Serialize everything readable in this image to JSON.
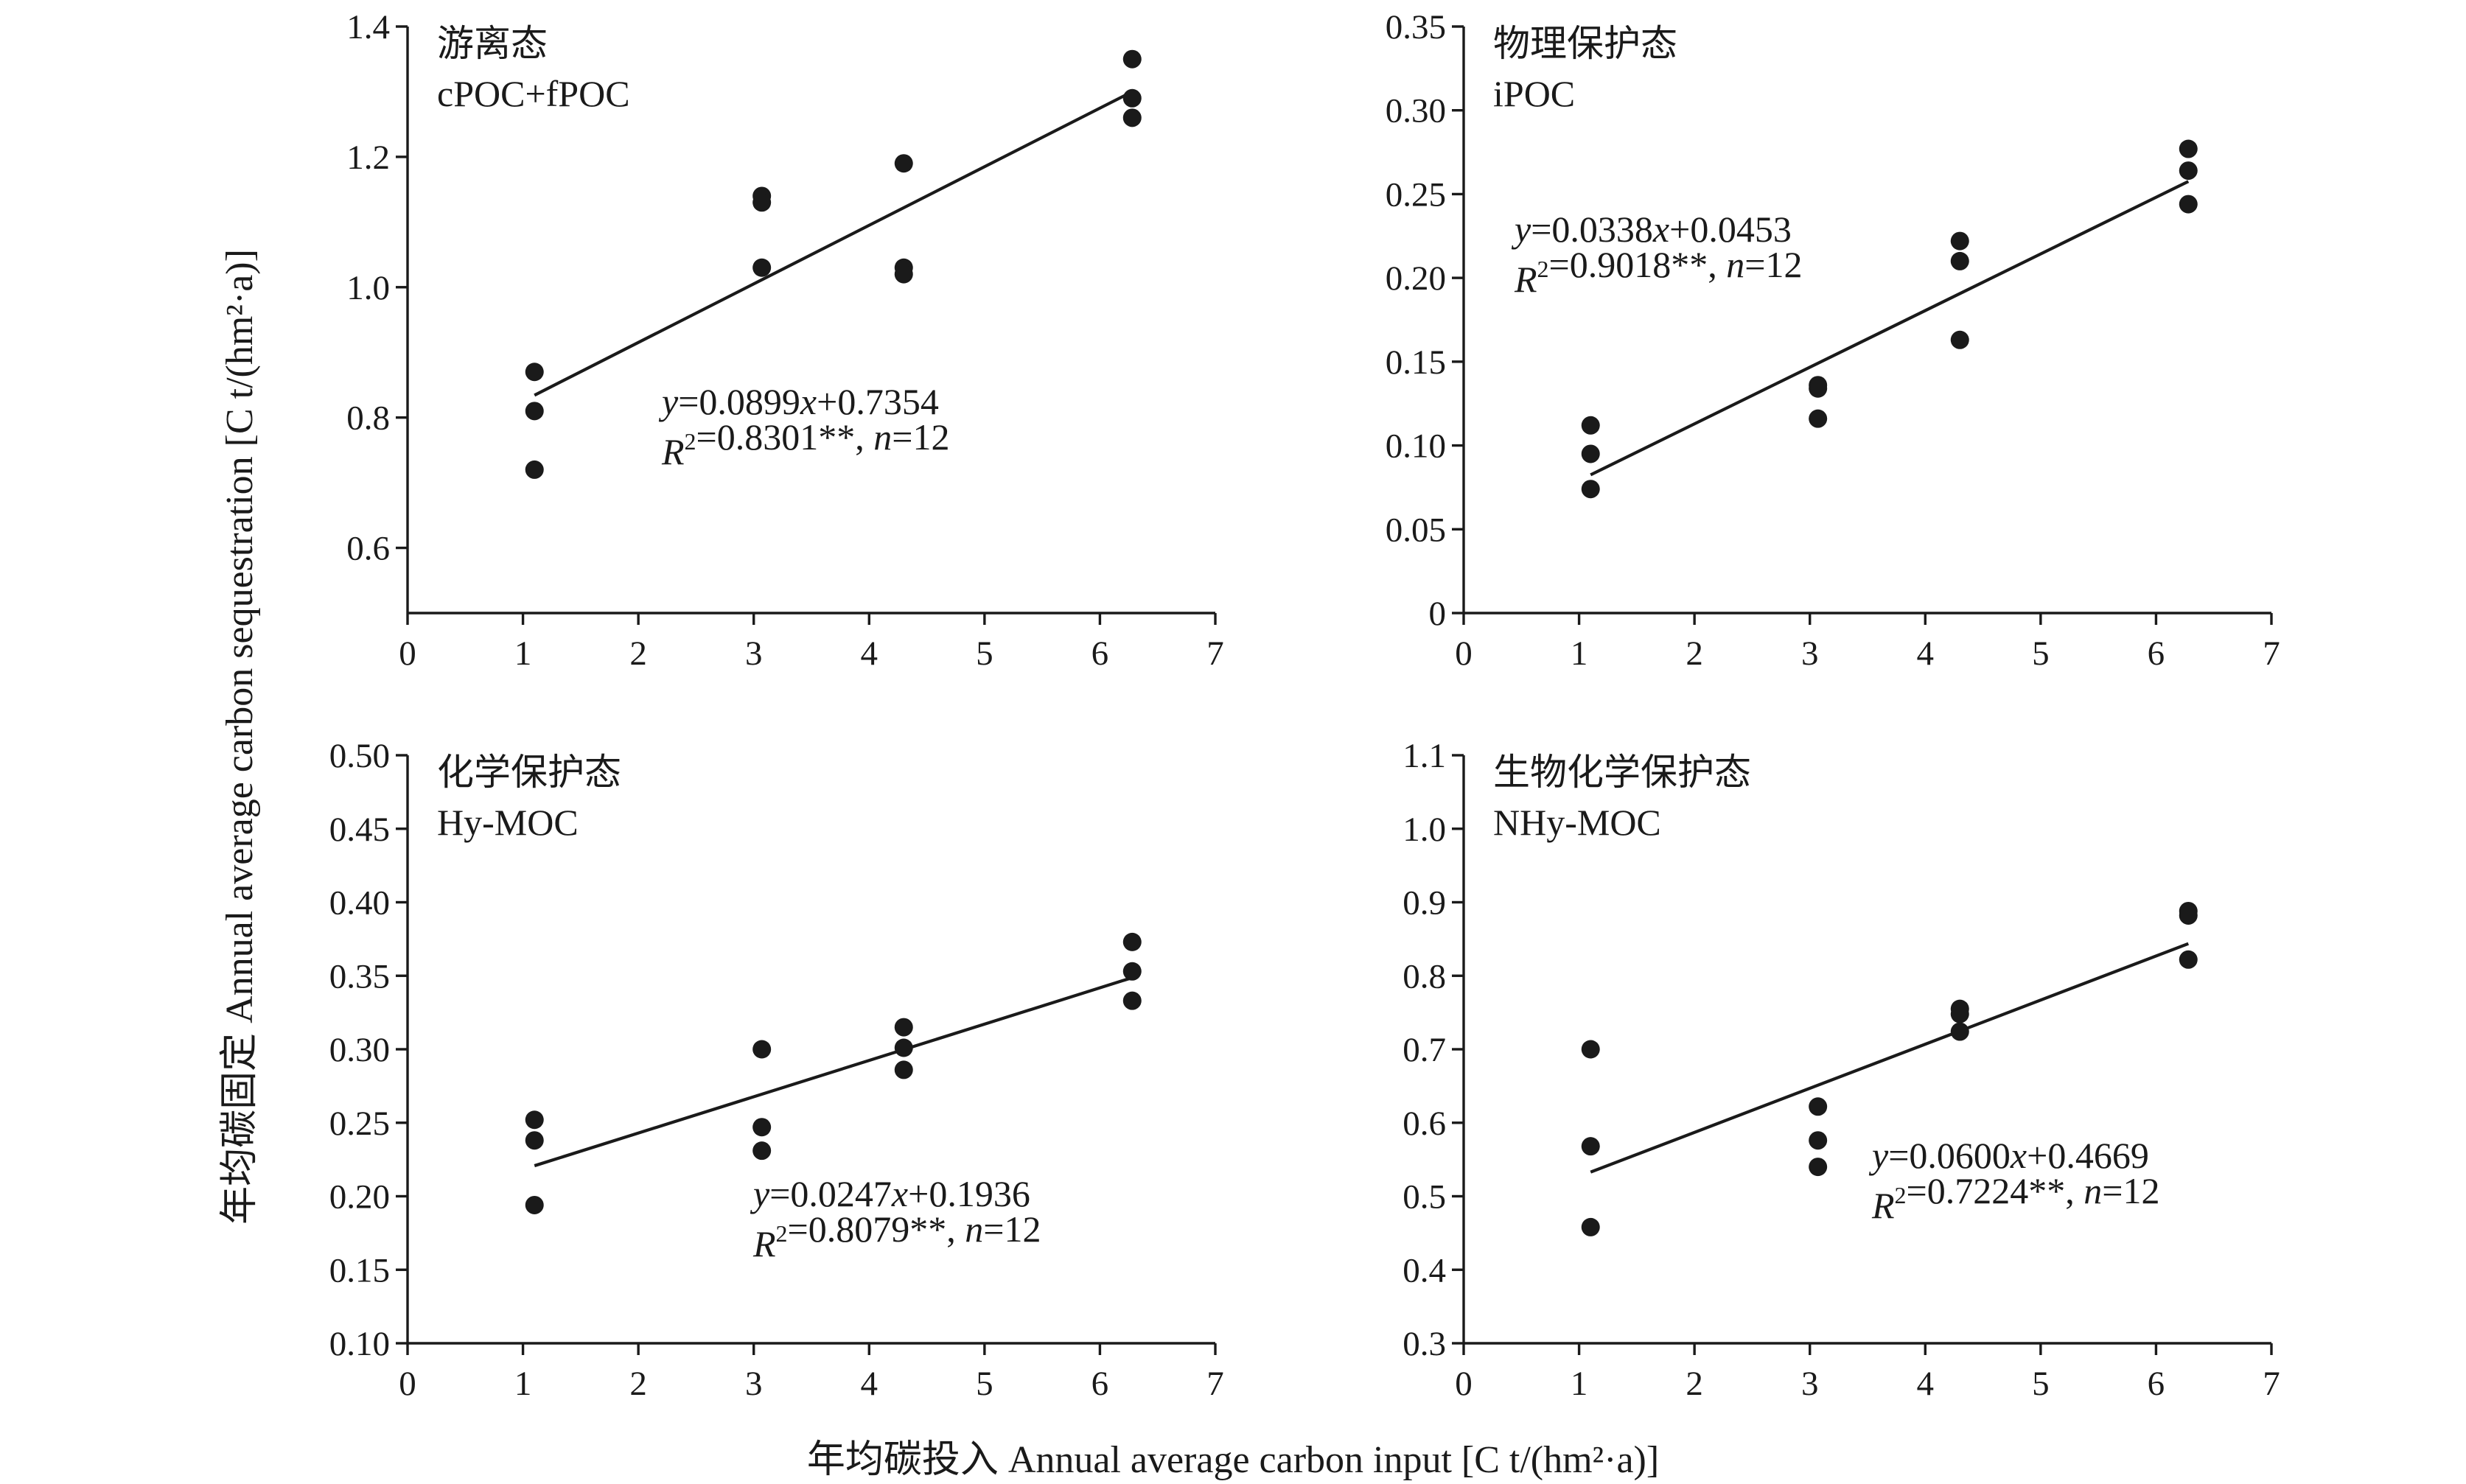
{
  "y_axis_label": "年均碳固定 Annual average carbon sequestration [C t/(hm²·a)]",
  "x_axis_label": "年均碳投入 Annual average carbon input [C t/(hm²·a)]",
  "chart_data": [
    {
      "type": "scatter",
      "title": "游离态",
      "subtitle": "cPOC+fPOC",
      "xlim": [
        0,
        7
      ],
      "ylim": [
        0.5,
        1.4
      ],
      "xticks": [
        "0",
        "1",
        "2",
        "3",
        "4",
        "5",
        "6",
        "7"
      ],
      "yticks": [
        "0.6",
        "0.8",
        "1.0",
        "1.2",
        "1.4"
      ],
      "points": [
        [
          1.1,
          0.87
        ],
        [
          1.1,
          0.81
        ],
        [
          1.1,
          0.72
        ],
        [
          3.07,
          1.14
        ],
        [
          3.07,
          1.13
        ],
        [
          3.07,
          1.03
        ],
        [
          4.3,
          1.19
        ],
        [
          4.3,
          1.03
        ],
        [
          4.3,
          1.02
        ],
        [
          6.28,
          1.35
        ],
        [
          6.28,
          1.29
        ],
        [
          6.28,
          1.26
        ]
      ],
      "fit": {
        "slope": 0.0899,
        "intercept": 0.7354,
        "x_range": [
          1.1,
          6.28
        ]
      },
      "equation": "y=0.0899x+0.7354",
      "stats": "R²=0.8301**, n=12"
    },
    {
      "type": "scatter",
      "title": "物理保护态",
      "subtitle": "iPOC",
      "xlim": [
        0,
        7
      ],
      "ylim": [
        0,
        0.35
      ],
      "xticks": [
        "0",
        "1",
        "2",
        "3",
        "4",
        "5",
        "6",
        "7"
      ],
      "yticks": [
        "0",
        "0.05",
        "0.10",
        "0.15",
        "0.20",
        "0.25",
        "0.30",
        "0.35"
      ],
      "points": [
        [
          1.1,
          0.112
        ],
        [
          1.1,
          0.095
        ],
        [
          1.1,
          0.074
        ],
        [
          3.07,
          0.136
        ],
        [
          3.07,
          0.134
        ],
        [
          3.07,
          0.116
        ],
        [
          4.3,
          0.222
        ],
        [
          4.3,
          0.21
        ],
        [
          4.3,
          0.163
        ],
        [
          6.28,
          0.277
        ],
        [
          6.28,
          0.264
        ],
        [
          6.28,
          0.244
        ]
      ],
      "fit": {
        "slope": 0.0338,
        "intercept": 0.0453,
        "x_range": [
          1.1,
          6.28
        ]
      },
      "equation": "y=0.0338x+0.0453",
      "stats": "R²=0.9018**, n=12"
    },
    {
      "type": "scatter",
      "title": "化学保护态",
      "subtitle": "Hy-MOC",
      "xlim": [
        0,
        7
      ],
      "ylim": [
        0.1,
        0.5
      ],
      "xticks": [
        "0",
        "1",
        "2",
        "3",
        "4",
        "5",
        "6",
        "7"
      ],
      "yticks": [
        "0.10",
        "0.15",
        "0.20",
        "0.25",
        "0.30",
        "0.35",
        "0.40",
        "0.45",
        "0.50"
      ],
      "points": [
        [
          1.1,
          0.252
        ],
        [
          1.1,
          0.238
        ],
        [
          1.1,
          0.194
        ],
        [
          3.07,
          0.3
        ],
        [
          3.07,
          0.247
        ],
        [
          3.07,
          0.231
        ],
        [
          4.3,
          0.315
        ],
        [
          4.3,
          0.301
        ],
        [
          4.3,
          0.286
        ],
        [
          6.28,
          0.373
        ],
        [
          6.28,
          0.353
        ],
        [
          6.28,
          0.333
        ]
      ],
      "fit": {
        "slope": 0.0247,
        "intercept": 0.1936,
        "x_range": [
          1.1,
          6.28
        ]
      },
      "equation": "y=0.0247x+0.1936",
      "stats": "R²=0.8079**, n=12"
    },
    {
      "type": "scatter",
      "title": "生物化学保护态",
      "subtitle": "NHy-MOC",
      "xlim": [
        0,
        7
      ],
      "ylim": [
        0.3,
        1.1
      ],
      "xticks": [
        "0",
        "1",
        "2",
        "3",
        "4",
        "5",
        "6",
        "7"
      ],
      "yticks": [
        "0.3",
        "0.4",
        "0.5",
        "0.6",
        "0.7",
        "0.8",
        "0.9",
        "1.0",
        "1.1"
      ],
      "points": [
        [
          1.1,
          0.7
        ],
        [
          1.1,
          0.568
        ],
        [
          1.1,
          0.458
        ],
        [
          3.07,
          0.622
        ],
        [
          3.07,
          0.576
        ],
        [
          3.07,
          0.54
        ],
        [
          4.3,
          0.755
        ],
        [
          4.3,
          0.748
        ],
        [
          4.3,
          0.724
        ],
        [
          6.28,
          0.888
        ],
        [
          6.28,
          0.882
        ],
        [
          6.28,
          0.822
        ]
      ],
      "fit": {
        "slope": 0.06,
        "intercept": 0.4669,
        "x_range": [
          1.1,
          6.28
        ]
      },
      "equation": "y=0.0600x+0.4669",
      "stats": "R²=0.7224**, n=12"
    }
  ]
}
